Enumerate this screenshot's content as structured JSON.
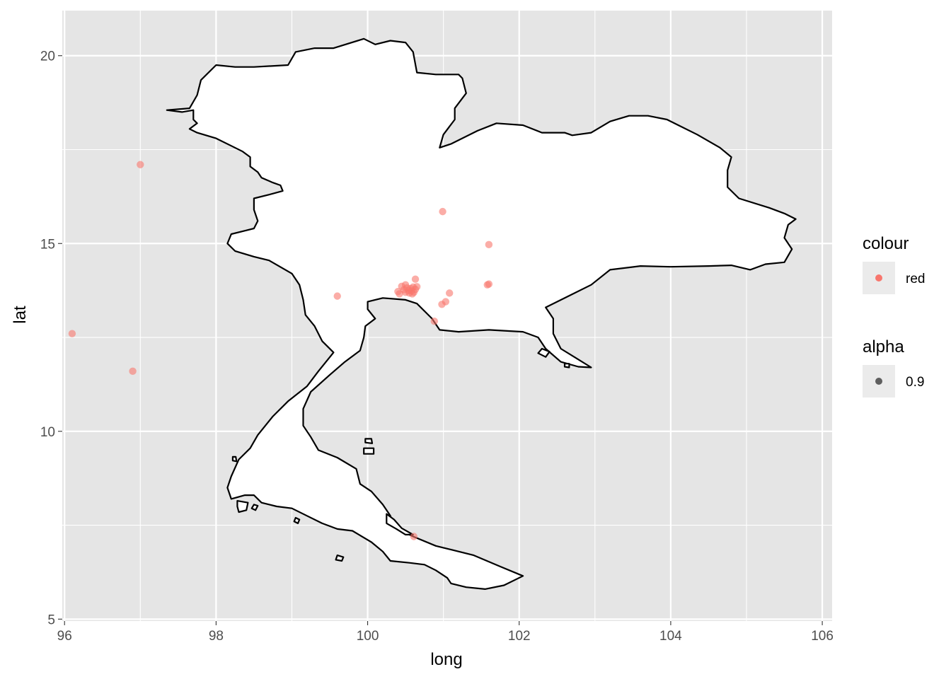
{
  "chart_data": {
    "type": "scatter",
    "title": "",
    "xlabel": "long",
    "ylabel": "lat",
    "xlim": [
      95.97,
      106.13
    ],
    "ylim": [
      4.95,
      21.2
    ],
    "x_ticks": [
      96,
      98,
      100,
      102,
      104,
      106
    ],
    "y_ticks": [
      5,
      10,
      15,
      20
    ],
    "x_tick_labels": [
      "96",
      "98",
      "100",
      "102",
      "104",
      "106"
    ],
    "y_tick_labels": [
      "5",
      "10",
      "15",
      "20"
    ],
    "grid": true,
    "legend_position": "right",
    "colors": {
      "panel_background": "#e5e5e5",
      "grid": "#ffffff",
      "point": "#f8766d",
      "outline": "#000000",
      "land_fill": "#ffffff",
      "legend_key_bg": "#ebebeb"
    },
    "point_alpha": 0.6,
    "legends": [
      {
        "title": "colour",
        "key_label": "red",
        "key_color": "#f8766d"
      },
      {
        "title": "alpha",
        "key_label": "0.9",
        "key_color": "#000000"
      }
    ],
    "points": [
      {
        "x": 97.0,
        "y": 17.1
      },
      {
        "x": 96.1,
        "y": 12.6
      },
      {
        "x": 96.9,
        "y": 11.6
      },
      {
        "x": 100.99,
        "y": 15.85
      },
      {
        "x": 101.6,
        "y": 14.97
      },
      {
        "x": 101.58,
        "y": 13.9
      },
      {
        "x": 101.6,
        "y": 13.92
      },
      {
        "x": 100.63,
        "y": 14.05
      },
      {
        "x": 101.08,
        "y": 13.68
      },
      {
        "x": 99.6,
        "y": 13.6
      },
      {
        "x": 101.03,
        "y": 13.45
      },
      {
        "x": 100.98,
        "y": 13.38
      },
      {
        "x": 100.88,
        "y": 12.93
      },
      {
        "x": 100.61,
        "y": 7.2
      },
      {
        "x": 100.4,
        "y": 13.72
      },
      {
        "x": 100.45,
        "y": 13.86
      },
      {
        "x": 100.48,
        "y": 13.77
      },
      {
        "x": 100.5,
        "y": 13.7
      },
      {
        "x": 100.52,
        "y": 13.82
      },
      {
        "x": 100.54,
        "y": 13.75
      },
      {
        "x": 100.55,
        "y": 13.68
      },
      {
        "x": 100.57,
        "y": 13.8
      },
      {
        "x": 100.58,
        "y": 13.74
      },
      {
        "x": 100.6,
        "y": 13.84
      },
      {
        "x": 100.61,
        "y": 13.7
      },
      {
        "x": 100.63,
        "y": 13.78
      },
      {
        "x": 100.65,
        "y": 13.85
      },
      {
        "x": 100.5,
        "y": 13.9
      },
      {
        "x": 100.42,
        "y": 13.66
      },
      {
        "x": 100.59,
        "y": 13.66
      }
    ],
    "outlines": [
      {
        "name": "mainland",
        "coords": [
          [
            97.35,
            18.55
          ],
          [
            97.55,
            18.5
          ],
          [
            97.7,
            18.55
          ],
          [
            97.7,
            18.3
          ],
          [
            97.75,
            18.2
          ],
          [
            97.65,
            18.05
          ],
          [
            97.75,
            17.95
          ],
          [
            98.0,
            17.8
          ],
          [
            98.2,
            17.6
          ],
          [
            98.35,
            17.45
          ],
          [
            98.45,
            17.3
          ],
          [
            98.45,
            17.05
          ],
          [
            98.55,
            16.9
          ],
          [
            98.6,
            16.75
          ],
          [
            98.75,
            16.62
          ],
          [
            98.85,
            16.55
          ],
          [
            98.88,
            16.4
          ],
          [
            98.7,
            16.3
          ],
          [
            98.5,
            16.2
          ],
          [
            98.5,
            15.9
          ],
          [
            98.55,
            15.6
          ],
          [
            98.5,
            15.4
          ],
          [
            98.4,
            15.35
          ],
          [
            98.2,
            15.25
          ],
          [
            98.15,
            15.0
          ],
          [
            98.25,
            14.8
          ],
          [
            98.5,
            14.65
          ],
          [
            98.7,
            14.55
          ],
          [
            99.0,
            14.2
          ],
          [
            99.1,
            13.9
          ],
          [
            99.15,
            13.5
          ],
          [
            99.18,
            13.1
          ],
          [
            99.3,
            12.8
          ],
          [
            99.4,
            12.4
          ],
          [
            99.55,
            12.1
          ],
          [
            99.45,
            11.85
          ],
          [
            99.35,
            11.6
          ],
          [
            99.2,
            11.2
          ],
          [
            98.95,
            10.8
          ],
          [
            98.75,
            10.4
          ],
          [
            98.55,
            9.9
          ],
          [
            98.45,
            9.55
          ],
          [
            98.3,
            9.25
          ],
          [
            98.2,
            8.8
          ],
          [
            98.15,
            8.5
          ],
          [
            98.2,
            8.2
          ],
          [
            98.38,
            8.3
          ],
          [
            98.5,
            8.3
          ],
          [
            98.6,
            8.1
          ],
          [
            98.8,
            8.0
          ],
          [
            99.0,
            7.95
          ],
          [
            99.2,
            7.75
          ],
          [
            99.4,
            7.55
          ],
          [
            99.6,
            7.4
          ],
          [
            99.8,
            7.35
          ],
          [
            100.05,
            7.05
          ],
          [
            100.2,
            6.8
          ],
          [
            100.3,
            6.55
          ],
          [
            100.55,
            6.5
          ],
          [
            100.75,
            6.45
          ],
          [
            100.9,
            6.3
          ],
          [
            101.05,
            6.1
          ],
          [
            101.1,
            5.95
          ],
          [
            101.3,
            5.85
          ],
          [
            101.55,
            5.8
          ],
          [
            101.8,
            5.9
          ],
          [
            102.05,
            6.15
          ],
          [
            101.75,
            6.4
          ],
          [
            101.4,
            6.7
          ],
          [
            101.1,
            6.85
          ],
          [
            100.9,
            6.95
          ],
          [
            100.6,
            7.2
          ],
          [
            100.35,
            7.45
          ],
          [
            100.3,
            7.75
          ],
          [
            100.2,
            8.05
          ],
          [
            100.05,
            8.4
          ],
          [
            99.9,
            8.6
          ],
          [
            99.85,
            9.0
          ],
          [
            99.6,
            9.3
          ],
          [
            99.35,
            9.5
          ],
          [
            99.25,
            9.85
          ],
          [
            99.15,
            10.15
          ],
          [
            99.15,
            10.6
          ],
          [
            99.25,
            11.05
          ],
          [
            99.5,
            11.5
          ],
          [
            99.7,
            11.85
          ],
          [
            99.9,
            12.15
          ],
          [
            99.95,
            12.5
          ],
          [
            99.97,
            12.8
          ],
          [
            100.1,
            13.0
          ],
          [
            100.0,
            13.25
          ],
          [
            100.0,
            13.45
          ],
          [
            100.2,
            13.55
          ],
          [
            100.5,
            13.5
          ],
          [
            100.65,
            13.4
          ],
          [
            100.85,
            13.0
          ],
          [
            100.95,
            12.7
          ],
          [
            101.2,
            12.65
          ],
          [
            101.6,
            12.7
          ],
          [
            102.05,
            12.65
          ],
          [
            102.25,
            12.5
          ],
          [
            102.35,
            12.2
          ],
          [
            102.55,
            11.85
          ],
          [
            102.78,
            11.72
          ],
          [
            102.95,
            11.7
          ],
          [
            102.75,
            11.95
          ],
          [
            102.55,
            12.2
          ],
          [
            102.45,
            12.6
          ],
          [
            102.45,
            13.0
          ],
          [
            102.35,
            13.3
          ],
          [
            102.7,
            13.65
          ],
          [
            102.95,
            13.9
          ],
          [
            103.2,
            14.3
          ],
          [
            103.6,
            14.4
          ],
          [
            104.0,
            14.38
          ],
          [
            104.5,
            14.4
          ],
          [
            104.8,
            14.42
          ],
          [
            105.05,
            14.3
          ],
          [
            105.25,
            14.45
          ],
          [
            105.5,
            14.5
          ],
          [
            105.6,
            14.85
          ],
          [
            105.5,
            15.15
          ],
          [
            105.55,
            15.5
          ],
          [
            105.65,
            15.65
          ],
          [
            105.5,
            15.8
          ],
          [
            105.3,
            15.95
          ],
          [
            104.9,
            16.2
          ],
          [
            104.75,
            16.5
          ],
          [
            104.75,
            16.95
          ],
          [
            104.8,
            17.3
          ],
          [
            104.65,
            17.55
          ],
          [
            104.35,
            17.9
          ],
          [
            104.1,
            18.15
          ],
          [
            103.95,
            18.3
          ],
          [
            103.7,
            18.4
          ],
          [
            103.45,
            18.4
          ],
          [
            103.2,
            18.25
          ],
          [
            102.95,
            17.95
          ],
          [
            102.7,
            17.88
          ],
          [
            102.6,
            17.95
          ],
          [
            102.3,
            17.95
          ],
          [
            102.05,
            18.15
          ],
          [
            101.7,
            18.2
          ],
          [
            101.45,
            18.0
          ],
          [
            101.1,
            17.65
          ],
          [
            100.95,
            17.55
          ],
          [
            101.0,
            17.9
          ],
          [
            101.15,
            18.3
          ],
          [
            101.15,
            18.6
          ],
          [
            101.3,
            19.0
          ],
          [
            101.25,
            19.4
          ],
          [
            101.2,
            19.5
          ],
          [
            100.9,
            19.5
          ],
          [
            100.65,
            19.55
          ],
          [
            100.6,
            20.1
          ],
          [
            100.5,
            20.35
          ],
          [
            100.3,
            20.4
          ],
          [
            100.1,
            20.3
          ],
          [
            99.95,
            20.45
          ],
          [
            99.55,
            20.2
          ],
          [
            99.3,
            20.2
          ],
          [
            99.05,
            20.1
          ],
          [
            98.95,
            19.75
          ],
          [
            98.5,
            19.7
          ],
          [
            98.25,
            19.7
          ],
          [
            98.0,
            19.75
          ],
          [
            97.8,
            19.35
          ],
          [
            97.75,
            18.95
          ],
          [
            97.65,
            18.6
          ],
          [
            97.35,
            18.55
          ]
        ]
      },
      {
        "name": "phuket",
        "coords": [
          [
            98.28,
            8.15
          ],
          [
            98.42,
            8.1
          ],
          [
            98.4,
            7.9
          ],
          [
            98.3,
            7.85
          ],
          [
            98.28,
            8.0
          ],
          [
            98.28,
            8.15
          ]
        ]
      },
      {
        "name": "yao-islet",
        "coords": [
          [
            98.5,
            8.05
          ],
          [
            98.55,
            8.02
          ],
          [
            98.52,
            7.9
          ],
          [
            98.47,
            7.95
          ],
          [
            98.5,
            8.05
          ]
        ]
      },
      {
        "name": "samui",
        "coords": [
          [
            99.95,
            9.55
          ],
          [
            100.08,
            9.55
          ],
          [
            100.08,
            9.4
          ],
          [
            99.95,
            9.4
          ],
          [
            99.95,
            9.55
          ]
        ]
      },
      {
        "name": "phangan",
        "coords": [
          [
            99.97,
            9.8
          ],
          [
            100.05,
            9.8
          ],
          [
            100.06,
            9.68
          ],
          [
            99.97,
            9.7
          ],
          [
            99.97,
            9.8
          ]
        ]
      },
      {
        "name": "small-west-islet",
        "coords": [
          [
            98.22,
            9.32
          ],
          [
            98.26,
            9.32
          ],
          [
            98.27,
            9.2
          ],
          [
            98.22,
            9.22
          ],
          [
            98.22,
            9.32
          ]
        ]
      },
      {
        "name": "lanta-islet",
        "coords": [
          [
            99.05,
            7.7
          ],
          [
            99.1,
            7.65
          ],
          [
            99.08,
            7.55
          ],
          [
            99.03,
            7.6
          ],
          [
            99.05,
            7.7
          ]
        ]
      },
      {
        "name": "tarutao",
        "coords": [
          [
            99.6,
            6.7
          ],
          [
            99.68,
            6.65
          ],
          [
            99.66,
            6.55
          ],
          [
            99.58,
            6.58
          ],
          [
            99.6,
            6.7
          ]
        ]
      },
      {
        "name": "songkhla-lagoon",
        "coords": [
          [
            100.25,
            7.8
          ],
          [
            100.35,
            7.65
          ],
          [
            100.45,
            7.42
          ],
          [
            100.6,
            7.25
          ],
          [
            100.5,
            7.25
          ],
          [
            100.38,
            7.4
          ],
          [
            100.25,
            7.55
          ],
          [
            100.25,
            7.8
          ]
        ]
      },
      {
        "name": "koh-chang",
        "coords": [
          [
            102.3,
            12.2
          ],
          [
            102.4,
            12.12
          ],
          [
            102.35,
            11.98
          ],
          [
            102.25,
            12.08
          ],
          [
            102.3,
            12.2
          ]
        ]
      },
      {
        "name": "koh-kood",
        "coords": [
          [
            102.6,
            11.8
          ],
          [
            102.66,
            11.8
          ],
          [
            102.66,
            11.7
          ],
          [
            102.6,
            11.72
          ],
          [
            102.6,
            11.8
          ]
        ]
      }
    ]
  }
}
